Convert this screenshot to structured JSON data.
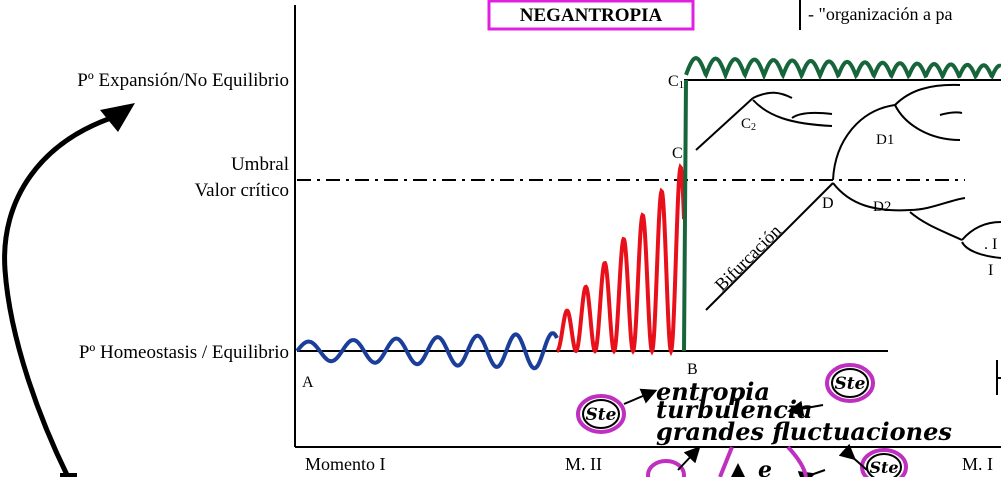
{
  "title": "NEGANTROPIA",
  "top_note": "- \"organización a pa",
  "y_axis_levels": {
    "expansion": "Pº Expansión/No Equilibrio",
    "umbral": "Umbral",
    "valor_critico": "Valor crítico",
    "homeostasis": "Pº Homeostasis / Equilibrio"
  },
  "x_axis_moments": {
    "m1": "Momento I",
    "m2": "M. II",
    "m3": "M. I"
  },
  "points": {
    "a": "A",
    "b": "B",
    "c": "C",
    "c1": "C",
    "c1_sub": "1",
    "c2": "C",
    "c2_sub": "2",
    "d": "D",
    "d1": "D1",
    "d2": "D2"
  },
  "bifurcation_label": "Bifurcación",
  "cut_right_text_1": ". I",
  "cut_right_text_2": "I",
  "handwritten": {
    "line1": "entropia",
    "line2": "turbulencia",
    "line3": "grandes fluctuaciones"
  },
  "ste_badge": "Ste",
  "bottom_partial_letter": "e",
  "colors": {
    "homeostasis_wave": "#1a3e9a",
    "critical_wave": "#e8101a",
    "expansion_wave": "#17653a",
    "title_border": "#e020e0",
    "ste_ring": "#c030c0",
    "ink": "#000000"
  }
}
